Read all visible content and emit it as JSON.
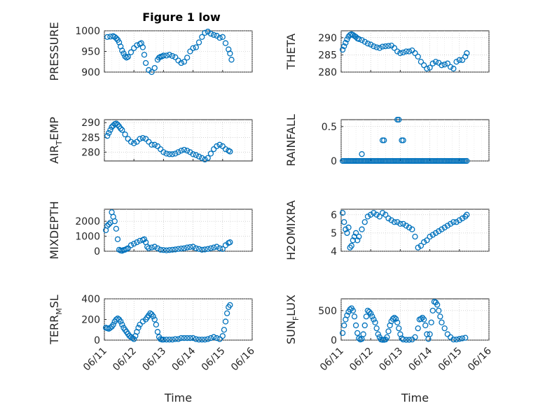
{
  "figure": {
    "title": "Figure 1 low",
    "marker_color": "#0072BD"
  },
  "chart_data": [
    {
      "id": "pressure",
      "type": "scatter",
      "title": "Figure 1 low",
      "ylabel_parts": [
        "PRESSURE"
      ],
      "xlabel": "",
      "ylim": [
        900,
        1000
      ],
      "yticks": [
        900,
        950,
        1000
      ],
      "xlim": [
        0,
        5
      ],
      "xticks": [
        "06/11",
        "06/12",
        "06/13",
        "06/14",
        "06/15",
        "06/16"
      ],
      "show_xticklabels": false,
      "x": [
        0.1,
        0.2,
        0.3,
        0.35,
        0.4,
        0.45,
        0.5,
        0.55,
        0.6,
        0.65,
        0.7,
        0.75,
        0.8,
        0.9,
        1.0,
        1.1,
        1.2,
        1.25,
        1.3,
        1.35,
        1.4,
        1.5,
        1.6,
        1.7,
        1.8,
        1.85,
        1.9,
        1.95,
        2.0,
        2.1,
        2.2,
        2.3,
        2.4,
        2.5,
        2.6,
        2.7,
        2.8,
        2.9,
        3.0,
        3.1,
        3.2,
        3.3,
        3.4,
        3.5,
        3.6,
        3.7,
        3.8,
        3.9,
        4.0,
        4.1,
        4.2,
        4.25,
        4.3
      ],
      "y": [
        985,
        986,
        987,
        985,
        982,
        978,
        972,
        962,
        952,
        945,
        938,
        935,
        937,
        948,
        958,
        965,
        968,
        970,
        960,
        942,
        922,
        905,
        900,
        910,
        930,
        935,
        937,
        938,
        940,
        940,
        942,
        939,
        936,
        928,
        922,
        925,
        935,
        950,
        958,
        960,
        972,
        985,
        995,
        998,
        993,
        990,
        988,
        983,
        985,
        970,
        955,
        945,
        930
      ]
    },
    {
      "id": "theta",
      "type": "scatter",
      "ylabel_parts": [
        "THETA"
      ],
      "xlabel": "",
      "ylim": [
        280,
        292
      ],
      "yticks": [
        280,
        285,
        290
      ],
      "xlim": [
        0,
        5
      ],
      "xticks": [
        "06/11",
        "06/12",
        "06/13",
        "06/14",
        "06/15",
        "06/16"
      ],
      "show_xticklabels": false,
      "x": [
        0.05,
        0.1,
        0.15,
        0.2,
        0.25,
        0.3,
        0.35,
        0.4,
        0.45,
        0.5,
        0.55,
        0.6,
        0.7,
        0.8,
        0.9,
        1.0,
        1.1,
        1.2,
        1.3,
        1.4,
        1.5,
        1.6,
        1.7,
        1.8,
        1.9,
        2.0,
        2.1,
        2.2,
        2.3,
        2.4,
        2.5,
        2.6,
        2.7,
        2.8,
        2.9,
        3.0,
        3.1,
        3.2,
        3.3,
        3.4,
        3.5,
        3.6,
        3.7,
        3.8,
        3.9,
        4.0,
        4.1,
        4.2,
        4.25
      ],
      "y": [
        286.5,
        287.5,
        288.5,
        289.5,
        290.3,
        290.8,
        291.0,
        290.8,
        290.5,
        290.2,
        289.8,
        289.6,
        289.3,
        288.8,
        288.3,
        288.0,
        287.5,
        287.2,
        287.0,
        287.4,
        287.5,
        287.6,
        287.7,
        287.0,
        286.0,
        285.5,
        285.7,
        286.0,
        286.0,
        286.3,
        285.5,
        284.5,
        283.0,
        282.0,
        281.0,
        281.3,
        282.5,
        283.0,
        282.7,
        282.0,
        282.2,
        282.5,
        281.5,
        281.0,
        283.0,
        283.5,
        283.5,
        284.5,
        285.5
      ]
    },
    {
      "id": "air_temp",
      "type": "scatter",
      "ylabel_parts": [
        "AIR",
        "T",
        "EMP"
      ],
      "xlabel": "",
      "ylim": [
        277,
        291
      ],
      "yticks": [
        280,
        285,
        290
      ],
      "xlim": [
        0,
        5
      ],
      "xticks": [
        "06/11",
        "06/12",
        "06/13",
        "06/14",
        "06/15",
        "06/16"
      ],
      "show_xticklabels": false,
      "x": [
        0.1,
        0.15,
        0.2,
        0.25,
        0.3,
        0.35,
        0.4,
        0.45,
        0.5,
        0.55,
        0.6,
        0.7,
        0.8,
        0.9,
        1.0,
        1.1,
        1.2,
        1.3,
        1.4,
        1.5,
        1.6,
        1.7,
        1.8,
        1.9,
        2.0,
        2.1,
        2.2,
        2.3,
        2.4,
        2.5,
        2.6,
        2.7,
        2.8,
        2.9,
        3.0,
        3.1,
        3.2,
        3.3,
        3.4,
        3.5,
        3.6,
        3.7,
        3.8,
        3.9,
        4.0,
        4.1,
        4.2,
        4.25
      ],
      "y": [
        285.5,
        286.5,
        287.5,
        288.5,
        289.0,
        289.5,
        289.7,
        289.3,
        288.7,
        288.0,
        287.5,
        286.0,
        284.5,
        283.5,
        283.0,
        283.5,
        284.5,
        284.8,
        284.5,
        283.5,
        282.5,
        282.5,
        282.0,
        281.0,
        280.0,
        279.5,
        279.3,
        279.3,
        279.5,
        280.0,
        280.5,
        280.8,
        280.5,
        280.0,
        279.3,
        279.0,
        278.5,
        278.0,
        277.5,
        278.0,
        279.5,
        281.0,
        282.0,
        282.5,
        282.0,
        281.0,
        280.5,
        280.2
      ]
    },
    {
      "id": "rainfall",
      "type": "scatter",
      "ylabel_parts": [
        "RAINFALL"
      ],
      "xlabel": "",
      "ylim": [
        0,
        0.6
      ],
      "yticks": [
        0,
        0.5
      ],
      "ytick_labels": [
        "0",
        "0.5"
      ],
      "xlim": [
        0,
        5
      ],
      "xticks": [
        "06/11",
        "06/12",
        "06/13",
        "06/14",
        "06/15",
        "06/16"
      ],
      "show_xticklabels": false,
      "x": [
        0.05,
        0.1,
        0.15,
        0.2,
        0.25,
        0.3,
        0.35,
        0.4,
        0.45,
        0.5,
        0.55,
        0.6,
        0.65,
        0.7,
        0.75,
        0.8,
        0.85,
        0.9,
        0.95,
        1.0,
        1.05,
        1.1,
        1.15,
        1.2,
        1.25,
        1.3,
        1.35,
        1.4,
        1.45,
        1.5,
        1.55,
        1.6,
        1.65,
        1.7,
        1.75,
        1.8,
        1.85,
        1.9,
        1.95,
        2.0,
        2.05,
        2.1,
        2.15,
        2.2,
        2.25,
        2.3,
        2.35,
        2.4,
        2.45,
        2.5,
        2.55,
        2.6,
        2.65,
        2.7,
        2.75,
        2.8,
        2.85,
        2.9,
        2.95,
        3.0,
        3.05,
        3.1,
        3.15,
        3.2,
        3.25,
        3.3,
        3.35,
        3.4,
        3.45,
        3.5,
        3.55,
        3.6,
        3.65,
        3.7,
        3.75,
        3.8,
        3.85,
        3.9,
        3.95,
        4.0,
        4.05,
        4.1,
        4.15,
        4.2,
        4.25,
        0.7,
        1.4,
        1.45,
        1.9,
        1.95,
        2.05,
        2.1
      ],
      "y": [
        0,
        0,
        0,
        0,
        0,
        0,
        0,
        0,
        0,
        0,
        0,
        0,
        0,
        0,
        0,
        0,
        0,
        0,
        0,
        0,
        0,
        0,
        0,
        0,
        0,
        0,
        0,
        0,
        0,
        0,
        0,
        0,
        0,
        0,
        0,
        0,
        0,
        0,
        0,
        0,
        0,
        0,
        0,
        0,
        0,
        0,
        0,
        0,
        0,
        0,
        0,
        0,
        0,
        0,
        0,
        0,
        0,
        0,
        0,
        0,
        0,
        0,
        0,
        0,
        0,
        0,
        0,
        0,
        0,
        0,
        0,
        0,
        0,
        0,
        0,
        0,
        0,
        0,
        0,
        0,
        0,
        0,
        0,
        0,
        0,
        0.1,
        0.3,
        0.3,
        0.6,
        0.6,
        0.3,
        0.3
      ]
    },
    {
      "id": "mixdepth",
      "type": "scatter",
      "ylabel_parts": [
        "MIXDEPTH"
      ],
      "xlabel": "",
      "ylim": [
        0,
        2800
      ],
      "yticks": [
        0,
        1000,
        2000
      ],
      "xlim": [
        0,
        5
      ],
      "xticks": [
        "06/11",
        "06/12",
        "06/13",
        "06/14",
        "06/15",
        "06/16"
      ],
      "show_xticklabels": false,
      "x": [
        0.05,
        0.1,
        0.15,
        0.2,
        0.25,
        0.3,
        0.35,
        0.4,
        0.45,
        0.5,
        0.55,
        0.6,
        0.65,
        0.7,
        0.75,
        0.8,
        0.9,
        1.0,
        1.1,
        1.2,
        1.3,
        1.35,
        1.4,
        1.45,
        1.5,
        1.6,
        1.7,
        1.8,
        1.9,
        2.0,
        2.1,
        2.2,
        2.3,
        2.4,
        2.5,
        2.6,
        2.7,
        2.8,
        2.9,
        3.0,
        3.1,
        3.2,
        3.3,
        3.4,
        3.5,
        3.6,
        3.7,
        3.8,
        3.9,
        4.0,
        4.1,
        4.2,
        4.25
      ],
      "y": [
        1400,
        1700,
        1800,
        1900,
        2600,
        2300,
        2000,
        1500,
        800,
        100,
        50,
        30,
        80,
        100,
        150,
        200,
        400,
        500,
        600,
        700,
        750,
        800,
        600,
        300,
        200,
        250,
        300,
        200,
        100,
        80,
        60,
        80,
        100,
        120,
        150,
        180,
        200,
        250,
        280,
        300,
        200,
        150,
        100,
        120,
        150,
        200,
        250,
        300,
        200,
        150,
        400,
        550,
        600
      ]
    },
    {
      "id": "h2omixra",
      "type": "scatter",
      "ylabel_parts": [
        "H2OMIXRA"
      ],
      "xlabel": "",
      "ylim": [
        4,
        6.3
      ],
      "yticks": [
        4,
        5,
        6
      ],
      "xlim": [
        0,
        5
      ],
      "xticks": [
        "06/11",
        "06/12",
        "06/13",
        "06/14",
        "06/15",
        "06/16"
      ],
      "show_xticklabels": false,
      "x": [
        0.05,
        0.1,
        0.15,
        0.2,
        0.25,
        0.3,
        0.35,
        0.4,
        0.45,
        0.5,
        0.55,
        0.6,
        0.7,
        0.8,
        0.9,
        1.0,
        1.1,
        1.2,
        1.3,
        1.4,
        1.5,
        1.6,
        1.7,
        1.8,
        1.9,
        2.0,
        2.1,
        2.2,
        2.3,
        2.4,
        2.5,
        2.6,
        2.7,
        2.8,
        2.9,
        3.0,
        3.1,
        3.2,
        3.3,
        3.4,
        3.5,
        3.6,
        3.7,
        3.8,
        3.9,
        4.0,
        4.1,
        4.2,
        4.25
      ],
      "y": [
        6.1,
        5.6,
        5.2,
        5.0,
        5.3,
        4.2,
        4.3,
        4.6,
        4.8,
        5.0,
        4.6,
        4.8,
        5.2,
        5.6,
        5.9,
        6.0,
        6.1,
        6.0,
        5.9,
        6.1,
        6.0,
        5.8,
        5.7,
        5.6,
        5.6,
        5.5,
        5.5,
        5.4,
        5.3,
        5.2,
        4.8,
        4.2,
        4.3,
        4.5,
        4.6,
        4.8,
        4.9,
        5.0,
        5.1,
        5.2,
        5.3,
        5.4,
        5.5,
        5.6,
        5.6,
        5.7,
        5.8,
        5.9,
        6.0
      ]
    },
    {
      "id": "terr_msl",
      "type": "scatter",
      "ylabel_parts": [
        "TERR",
        "M",
        "SL"
      ],
      "xlabel": "Time",
      "ylim": [
        0,
        400
      ],
      "yticks": [
        0,
        200,
        400
      ],
      "xlim": [
        0,
        5
      ],
      "xticks": [
        "06/11",
        "06/12",
        "06/13",
        "06/14",
        "06/15",
        "06/16"
      ],
      "show_xticklabels": true,
      "x": [
        0.05,
        0.1,
        0.15,
        0.2,
        0.25,
        0.3,
        0.35,
        0.4,
        0.45,
        0.5,
        0.55,
        0.6,
        0.65,
        0.7,
        0.75,
        0.8,
        0.85,
        0.9,
        0.95,
        1.0,
        1.05,
        1.1,
        1.15,
        1.2,
        1.3,
        1.4,
        1.45,
        1.5,
        1.55,
        1.6,
        1.65,
        1.7,
        1.75,
        1.8,
        1.85,
        1.9,
        1.95,
        2.0,
        2.1,
        2.2,
        2.3,
        2.4,
        2.5,
        2.6,
        2.7,
        2.8,
        2.9,
        3.0,
        3.1,
        3.2,
        3.3,
        3.4,
        3.5,
        3.6,
        3.7,
        3.8,
        3.9,
        4.0,
        4.05,
        4.1,
        4.15,
        4.2,
        4.25
      ],
      "y": [
        120,
        115,
        110,
        120,
        130,
        150,
        180,
        200,
        210,
        200,
        180,
        150,
        120,
        100,
        80,
        60,
        40,
        30,
        20,
        10,
        40,
        80,
        120,
        150,
        180,
        200,
        220,
        240,
        260,
        250,
        230,
        200,
        150,
        80,
        30,
        10,
        5,
        5,
        5,
        5,
        5,
        10,
        10,
        20,
        20,
        20,
        20,
        20,
        10,
        5,
        5,
        5,
        10,
        20,
        30,
        20,
        10,
        40,
        100,
        180,
        260,
        320,
        340
      ]
    },
    {
      "id": "sun_flux",
      "type": "scatter",
      "ylabel_parts": [
        "SUN",
        "F",
        "LUX"
      ],
      "xlabel": "Time",
      "ylim": [
        0,
        700
      ],
      "yticks": [
        0,
        500
      ],
      "xlim": [
        0,
        5
      ],
      "xticks": [
        "06/11",
        "06/12",
        "06/13",
        "06/14",
        "06/15",
        "06/16"
      ],
      "show_xticklabels": true,
      "x": [
        0.05,
        0.1,
        0.15,
        0.2,
        0.25,
        0.3,
        0.35,
        0.4,
        0.45,
        0.5,
        0.55,
        0.6,
        0.65,
        0.7,
        0.75,
        0.8,
        0.85,
        0.9,
        0.95,
        1.0,
        1.05,
        1.1,
        1.15,
        1.2,
        1.25,
        1.3,
        1.35,
        1.4,
        1.45,
        1.5,
        1.55,
        1.6,
        1.65,
        1.7,
        1.75,
        1.8,
        1.85,
        1.9,
        1.95,
        2.0,
        2.05,
        2.1,
        2.2,
        2.3,
        2.4,
        2.5,
        2.6,
        2.65,
        2.7,
        2.75,
        2.8,
        2.85,
        2.9,
        2.95,
        3.0,
        3.05,
        3.1,
        3.15,
        3.2,
        3.25,
        3.3,
        3.35,
        3.4,
        3.5,
        3.6,
        3.7,
        3.8,
        3.9,
        4.0,
        4.1,
        4.2
      ],
      "y": [
        120,
        250,
        350,
        420,
        480,
        520,
        540,
        500,
        400,
        250,
        120,
        30,
        10,
        20,
        100,
        250,
        400,
        500,
        480,
        450,
        400,
        350,
        300,
        200,
        100,
        50,
        10,
        5,
        5,
        10,
        50,
        150,
        250,
        320,
        360,
        380,
        360,
        300,
        200,
        100,
        30,
        10,
        5,
        5,
        10,
        50,
        200,
        350,
        360,
        380,
        350,
        250,
        100,
        20,
        100,
        300,
        500,
        650,
        640,
        600,
        500,
        400,
        300,
        200,
        100,
        50,
        10,
        10,
        20,
        30,
        40
      ]
    }
  ]
}
